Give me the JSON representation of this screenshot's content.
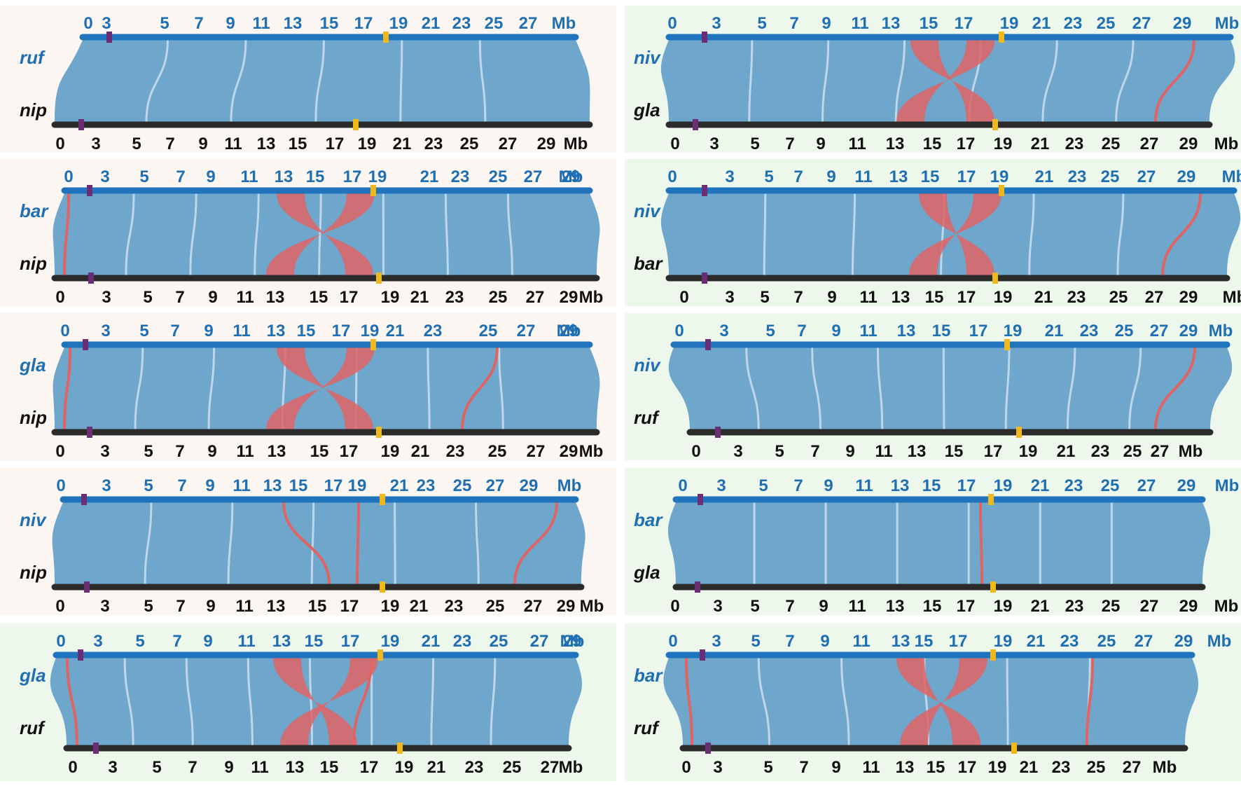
{
  "colors": {
    "top_bar": "#1f74bd",
    "bottom_bar": "#2b2b2b",
    "collinear": "#6fa6cc",
    "inversion": "#e06464",
    "centromere": "#f1b81b",
    "marker": "#6b2d73",
    "panel_left_bg": "#fbf6f1",
    "panel_right_bg": "#f2f8f2",
    "panel_bg_green": "#eef7ec",
    "separator": "#e8e8e8"
  },
  "panels": [
    {
      "top_label": "ruf",
      "bottom_label": "nip",
      "top_ticks": [
        "0",
        "3",
        "5",
        "7",
        "9",
        "11",
        "13",
        "15",
        "17",
        "19",
        "21",
        "23",
        "25",
        "27",
        "Mb"
      ],
      "bottom_ticks": [
        "0",
        "3",
        "5",
        "7",
        "9",
        "11",
        "13",
        "15",
        "17",
        "19",
        "21",
        "23",
        "25",
        "27",
        "29",
        "Mb"
      ]
    },
    {
      "top_label": "niv",
      "bottom_label": "gla",
      "top_ticks": [
        "0",
        "3",
        "5",
        "7",
        "9",
        "11",
        "13",
        "15",
        "17",
        "19",
        "21",
        "23",
        "25",
        "27",
        "29",
        "Mb"
      ],
      "bottom_ticks": [
        "0",
        "3",
        "5",
        "7",
        "9",
        "11",
        "13",
        "15",
        "17",
        "19",
        "21",
        "23",
        "25",
        "27",
        "29",
        "Mb"
      ]
    },
    {
      "top_label": "bar",
      "bottom_label": "nip",
      "top_ticks": [
        "0",
        "3",
        "5",
        "7",
        "9",
        "11",
        "13",
        "15",
        "17",
        "19",
        "21",
        "23",
        "25",
        "27",
        "29",
        "Mb"
      ],
      "bottom_ticks": [
        "0",
        "3",
        "5",
        "7",
        "9",
        "11",
        "13",
        "15",
        "17",
        "19",
        "21",
        "23",
        "25",
        "27",
        "29",
        "Mb"
      ]
    },
    {
      "top_label": "niv",
      "bottom_label": "bar",
      "top_ticks": [
        "0",
        "3",
        "5",
        "7",
        "9",
        "11",
        "13",
        "15",
        "17",
        "19",
        "21",
        "23",
        "25",
        "27",
        "29",
        "Mb"
      ],
      "bottom_ticks": [
        "0",
        "3",
        "5",
        "7",
        "9",
        "11",
        "13",
        "15",
        "17",
        "19",
        "21",
        "23",
        "25",
        "27",
        "29",
        "Mb"
      ]
    },
    {
      "top_label": "gla",
      "bottom_label": "nip",
      "top_ticks": [
        "0",
        "3",
        "5",
        "7",
        "9",
        "11",
        "13",
        "15",
        "17",
        "19",
        "21",
        "23",
        "25",
        "27",
        "29",
        "Mb"
      ],
      "bottom_ticks": [
        "0",
        "3",
        "5",
        "7",
        "9",
        "11",
        "13",
        "15",
        "17",
        "19",
        "21",
        "23",
        "25",
        "27",
        "29",
        "Mb"
      ]
    },
    {
      "top_label": "niv",
      "bottom_label": "ruf",
      "top_ticks": [
        "0",
        "3",
        "5",
        "7",
        "9",
        "11",
        "13",
        "15",
        "17",
        "19",
        "21",
        "23",
        "25",
        "27",
        "29",
        "Mb"
      ],
      "bottom_ticks": [
        "0",
        "3",
        "5",
        "7",
        "9",
        "11",
        "13",
        "15",
        "17",
        "19",
        "21",
        "23",
        "25",
        "27",
        "Mb"
      ]
    },
    {
      "top_label": "niv",
      "bottom_label": "nip",
      "top_ticks": [
        "0",
        "3",
        "5",
        "7",
        "9",
        "11",
        "13",
        "15",
        "17",
        "19",
        "21",
        "23",
        "25",
        "27",
        "29",
        "Mb"
      ],
      "bottom_ticks": [
        "0",
        "3",
        "5",
        "7",
        "9",
        "11",
        "13",
        "15",
        "17",
        "19",
        "21",
        "23",
        "25",
        "27",
        "29",
        "Mb"
      ]
    },
    {
      "top_label": "bar",
      "bottom_label": "gla",
      "top_ticks": [
        "0",
        "3",
        "5",
        "7",
        "9",
        "11",
        "13",
        "15",
        "17",
        "19",
        "21",
        "23",
        "25",
        "27",
        "29",
        "Mb"
      ],
      "bottom_ticks": [
        "0",
        "3",
        "5",
        "7",
        "9",
        "11",
        "13",
        "15",
        "17",
        "19",
        "21",
        "23",
        "25",
        "27",
        "29",
        "Mb"
      ]
    },
    {
      "top_label": "gla",
      "bottom_label": "ruf",
      "top_ticks": [
        "0",
        "3",
        "5",
        "7",
        "9",
        "11",
        "13",
        "15",
        "17",
        "19",
        "21",
        "23",
        "25",
        "27",
        "29",
        "Mb"
      ],
      "bottom_ticks": [
        "0",
        "3",
        "5",
        "7",
        "9",
        "11",
        "13",
        "15",
        "17",
        "19",
        "21",
        "23",
        "25",
        "27",
        "Mb"
      ]
    },
    {
      "top_label": "bar",
      "bottom_label": "ruf",
      "top_ticks": [
        "0",
        "3",
        "5",
        "7",
        "9",
        "11",
        "13",
        "15",
        "17",
        "19",
        "21",
        "23",
        "25",
        "27",
        "29",
        "Mb"
      ],
      "bottom_ticks": [
        "0",
        "3",
        "5",
        "7",
        "9",
        "11",
        "13",
        "15",
        "17",
        "19",
        "21",
        "23",
        "25",
        "27",
        "Mb"
      ]
    }
  ]
}
